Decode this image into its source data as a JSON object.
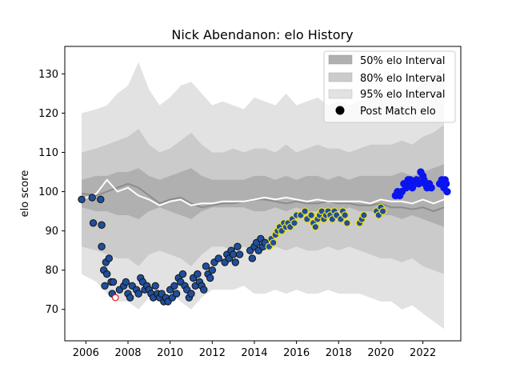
{
  "chart_data": {
    "type": "scatter",
    "title": "Nick Abendanon: elo History",
    "xlabel": "",
    "ylabel": "elo score",
    "xlim": [
      2005.0,
      2023.8
    ],
    "ylim": [
      62,
      137
    ],
    "x_ticks": [
      "2006",
      "2008",
      "2010",
      "2012",
      "2014",
      "2016",
      "2018",
      "2020",
      "2022"
    ],
    "y_ticks": [
      "70",
      "80",
      "90",
      "100",
      "110",
      "120",
      "130"
    ],
    "grid": false,
    "legend_position": "top-right",
    "legend": [
      "50% elo Interval",
      "80% elo Interval",
      "95% elo Interval",
      "Post Match elo"
    ],
    "colors": {
      "band50": "#b0b0b0",
      "band80": "#cbcbcb",
      "band95": "#e2e2e2",
      "median_line": "#8c8c8c",
      "mean_line": "#ffffff",
      "point_fill_dark": "#1f4f9c",
      "point_edge_dark": "#111111",
      "point_fill_yellow": "#1f4f9c",
      "point_edge_yellow": "#f0e020",
      "point_blue": "#0a14f0",
      "point_red_edge": "#e0202a"
    },
    "intervals": {
      "x": [
        2005.8,
        2006.5,
        2007.0,
        2007.5,
        2008.0,
        2008.5,
        2009.0,
        2009.5,
        2010.0,
        2010.5,
        2011.0,
        2011.5,
        2012.0,
        2012.5,
        2013.0,
        2013.5,
        2014.0,
        2014.5,
        2015.0,
        2015.5,
        2016.0,
        2016.5,
        2017.0,
        2017.5,
        2018.0,
        2018.5,
        2019.0,
        2019.5,
        2020.0,
        2020.5,
        2021.0,
        2021.5,
        2022.0,
        2022.5,
        2023.0
      ],
      "p95_high": [
        120,
        121,
        122,
        125,
        127,
        133,
        126,
        122,
        124,
        127,
        128,
        125,
        122,
        123,
        122,
        121,
        124,
        123,
        122,
        125,
        122,
        123,
        124,
        122,
        123,
        122,
        123,
        124,
        125,
        124,
        126,
        125,
        128,
        130,
        132
      ],
      "p80_high": [
        110,
        111,
        112,
        113,
        114,
        116,
        112,
        110,
        111,
        113,
        115,
        112,
        110,
        110,
        111,
        110,
        111,
        111,
        110,
        112,
        110,
        111,
        112,
        111,
        111,
        110,
        111,
        112,
        112,
        112,
        113,
        112,
        114,
        115,
        117
      ],
      "p50_high": [
        103,
        104,
        104,
        105,
        105,
        106,
        104,
        103,
        104,
        105,
        106,
        104,
        103,
        103,
        103,
        103,
        104,
        104,
        103,
        104,
        103,
        104,
        104,
        103,
        104,
        103,
        104,
        104,
        104,
        104,
        105,
        104,
        105,
        106,
        107
      ],
      "p50_low": [
        96,
        95,
        95,
        94,
        94,
        93,
        95,
        96,
        95,
        94,
        93,
        95,
        96,
        96,
        96,
        96,
        95,
        95,
        96,
        95,
        96,
        95,
        95,
        96,
        95,
        96,
        95,
        95,
        94,
        94,
        93,
        94,
        93,
        92,
        91
      ],
      "p80_low": [
        86,
        85,
        84,
        83,
        83,
        81,
        84,
        85,
        84,
        83,
        81,
        84,
        86,
        86,
        85,
        86,
        85,
        85,
        86,
        85,
        86,
        85,
        85,
        86,
        85,
        86,
        85,
        84,
        83,
        83,
        82,
        83,
        81,
        80,
        79
      ],
      "p95_low": [
        79,
        77,
        74,
        72,
        72,
        70,
        73,
        75,
        74,
        72,
        70,
        73,
        75,
        75,
        75,
        76,
        74,
        74,
        75,
        74,
        75,
        74,
        74,
        75,
        74,
        74,
        74,
        73,
        72,
        72,
        70,
        71,
        69,
        67,
        65
      ],
      "median": [
        99.5,
        99,
        100,
        101,
        102,
        101,
        99,
        97,
        98,
        98.5,
        97,
        96,
        96.5,
        97,
        97,
        97.5,
        98,
        98,
        97.5,
        97,
        97.5,
        97,
        97,
        97.5,
        97,
        97,
        96.5,
        96.5,
        97,
        96,
        96,
        95.5,
        96,
        95,
        96
      ],
      "mean": [
        98,
        99.5,
        103,
        100,
        101,
        99,
        98,
        96.5,
        97.5,
        98,
        96.5,
        97,
        97,
        97.5,
        97.5,
        97.5,
        98,
        98.5,
        98,
        98.5,
        98,
        97.5,
        98,
        97.5,
        97.5,
        97.5,
        97.5,
        97,
        98,
        97.5,
        97.5,
        97,
        98,
        97,
        98
      ]
    },
    "points_dark": [
      [
        2005.8,
        98
      ],
      [
        2006.3,
        98.5
      ],
      [
        2006.35,
        92
      ],
      [
        2006.7,
        98
      ],
      [
        2006.75,
        91.5
      ],
      [
        2006.75,
        86
      ],
      [
        2006.85,
        80
      ],
      [
        2006.9,
        76
      ],
      [
        2006.95,
        82
      ],
      [
        2007.0,
        79
      ],
      [
        2007.1,
        83
      ],
      [
        2007.2,
        77
      ],
      [
        2007.25,
        74
      ],
      [
        2007.3,
        77
      ],
      [
        2007.6,
        75
      ],
      [
        2007.8,
        76
      ],
      [
        2007.9,
        77
      ],
      [
        2008.0,
        74
      ],
      [
        2008.1,
        73
      ],
      [
        2008.2,
        76
      ],
      [
        2008.4,
        75
      ],
      [
        2008.5,
        74
      ],
      [
        2008.6,
        78
      ],
      [
        2008.7,
        77
      ],
      [
        2008.8,
        75
      ],
      [
        2008.9,
        76
      ],
      [
        2009.0,
        75
      ],
      [
        2009.1,
        74
      ],
      [
        2009.2,
        73
      ],
      [
        2009.3,
        76
      ],
      [
        2009.4,
        74
      ],
      [
        2009.5,
        73
      ],
      [
        2009.6,
        74
      ],
      [
        2009.7,
        72
      ],
      [
        2009.8,
        73
      ],
      [
        2009.9,
        72
      ],
      [
        2010.0,
        75
      ],
      [
        2010.1,
        73
      ],
      [
        2010.2,
        76
      ],
      [
        2010.3,
        74
      ],
      [
        2010.4,
        78
      ],
      [
        2010.5,
        77
      ],
      [
        2010.6,
        79
      ],
      [
        2010.7,
        76
      ],
      [
        2010.8,
        75
      ],
      [
        2010.9,
        73
      ],
      [
        2011.0,
        74
      ],
      [
        2011.1,
        78
      ],
      [
        2011.2,
        76
      ],
      [
        2011.3,
        79
      ],
      [
        2011.4,
        77
      ],
      [
        2011.5,
        76
      ],
      [
        2011.6,
        75
      ],
      [
        2011.7,
        81
      ],
      [
        2011.8,
        79
      ],
      [
        2011.9,
        78
      ],
      [
        2012.0,
        80
      ],
      [
        2012.1,
        82
      ],
      [
        2012.3,
        83
      ],
      [
        2012.6,
        82
      ],
      [
        2012.7,
        84
      ],
      [
        2012.8,
        83
      ],
      [
        2012.9,
        85
      ],
      [
        2013.0,
        84
      ],
      [
        2013.1,
        82
      ],
      [
        2013.2,
        86
      ],
      [
        2013.3,
        84
      ],
      [
        2013.8,
        85
      ],
      [
        2013.9,
        83
      ],
      [
        2014.0,
        86
      ],
      [
        2014.1,
        87
      ],
      [
        2014.2,
        85
      ],
      [
        2014.3,
        88
      ],
      [
        2014.4,
        86
      ],
      [
        2014.5,
        87
      ]
    ],
    "points_yellow": [
      [
        2014.7,
        86
      ],
      [
        2014.8,
        88
      ],
      [
        2014.9,
        87
      ],
      [
        2015.0,
        89
      ],
      [
        2015.1,
        90
      ],
      [
        2015.2,
        91
      ],
      [
        2015.3,
        90
      ],
      [
        2015.4,
        92
      ],
      [
        2015.5,
        91
      ],
      [
        2015.6,
        92
      ],
      [
        2015.7,
        91
      ],
      [
        2015.8,
        93
      ],
      [
        2015.9,
        92
      ],
      [
        2016.0,
        94
      ],
      [
        2016.2,
        94
      ],
      [
        2016.4,
        95
      ],
      [
        2016.5,
        93
      ],
      [
        2016.7,
        94
      ],
      [
        2016.8,
        92
      ],
      [
        2016.9,
        91
      ],
      [
        2017.0,
        93
      ],
      [
        2017.1,
        94
      ],
      [
        2017.2,
        95
      ],
      [
        2017.3,
        93
      ],
      [
        2017.4,
        94
      ],
      [
        2017.5,
        95
      ],
      [
        2017.6,
        94
      ],
      [
        2017.7,
        93
      ],
      [
        2017.8,
        95
      ],
      [
        2017.9,
        94
      ],
      [
        2018.1,
        93
      ],
      [
        2018.2,
        95
      ],
      [
        2018.3,
        94
      ],
      [
        2018.4,
        92
      ],
      [
        2019.0,
        92
      ],
      [
        2019.1,
        93
      ],
      [
        2019.2,
        94
      ],
      [
        2019.8,
        95
      ],
      [
        2019.9,
        94
      ],
      [
        2020.0,
        96
      ],
      [
        2020.1,
        95
      ]
    ],
    "points_blue": [
      [
        2020.7,
        99
      ],
      [
        2020.8,
        100
      ],
      [
        2020.9,
        99
      ],
      [
        2021.0,
        100
      ],
      [
        2021.1,
        102
      ],
      [
        2021.2,
        101
      ],
      [
        2021.3,
        103
      ],
      [
        2021.35,
        102
      ],
      [
        2021.4,
        103
      ],
      [
        2021.5,
        101
      ],
      [
        2021.6,
        102
      ],
      [
        2021.7,
        103
      ],
      [
        2021.8,
        102
      ],
      [
        2021.9,
        105
      ],
      [
        2022.0,
        104
      ],
      [
        2022.05,
        103
      ],
      [
        2022.1,
        102
      ],
      [
        2022.2,
        101
      ],
      [
        2022.3,
        102
      ],
      [
        2022.4,
        101
      ],
      [
        2022.8,
        102
      ],
      [
        2022.9,
        103
      ],
      [
        2023.0,
        101
      ],
      [
        2023.05,
        103
      ],
      [
        2023.1,
        102
      ],
      [
        2023.15,
        100
      ]
    ],
    "points_red": [
      [
        2007.4,
        73
      ]
    ]
  }
}
